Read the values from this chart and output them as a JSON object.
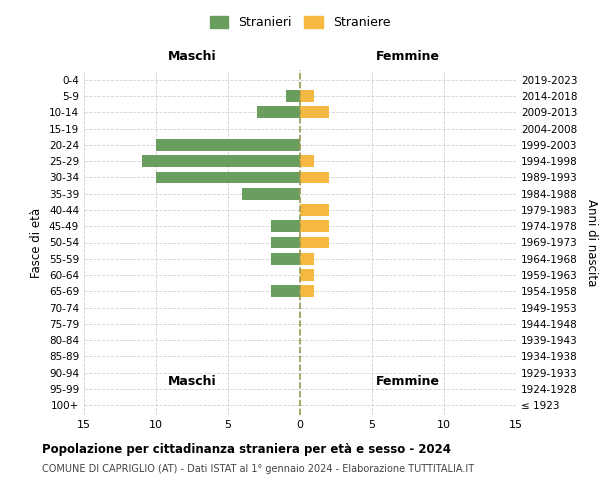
{
  "age_groups": [
    "100+",
    "95-99",
    "90-94",
    "85-89",
    "80-84",
    "75-79",
    "70-74",
    "65-69",
    "60-64",
    "55-59",
    "50-54",
    "45-49",
    "40-44",
    "35-39",
    "30-34",
    "25-29",
    "20-24",
    "15-19",
    "10-14",
    "5-9",
    "0-4"
  ],
  "birth_years": [
    "≤ 1923",
    "1924-1928",
    "1929-1933",
    "1934-1938",
    "1939-1943",
    "1944-1948",
    "1949-1953",
    "1954-1958",
    "1959-1963",
    "1964-1968",
    "1969-1973",
    "1974-1978",
    "1979-1983",
    "1984-1988",
    "1989-1993",
    "1994-1998",
    "1999-2003",
    "2004-2008",
    "2009-2013",
    "2014-2018",
    "2019-2023"
  ],
  "males": [
    0,
    0,
    0,
    0,
    0,
    0,
    0,
    2,
    0,
    2,
    2,
    2,
    0,
    4,
    10,
    11,
    10,
    0,
    3,
    1,
    0
  ],
  "females": [
    0,
    0,
    0,
    0,
    0,
    0,
    0,
    1,
    1,
    1,
    2,
    2,
    2,
    0,
    2,
    1,
    0,
    0,
    2,
    1,
    0
  ],
  "male_color": "#6a9e5f",
  "female_color": "#f5b942",
  "male_label": "Stranieri",
  "female_label": "Straniere",
  "xlim": 15,
  "title": "Popolazione per cittadinanza straniera per età e sesso - 2024",
  "subtitle": "COMUNE DI CAPRIGLIO (AT) - Dati ISTAT al 1° gennaio 2024 - Elaborazione TUTTITALIA.IT",
  "left_header": "Maschi",
  "right_header": "Femmine",
  "left_axis_label": "Fasce di età",
  "right_axis_label": "Anni di nascita",
  "bg_color": "#ffffff",
  "grid_color": "#cccccc",
  "dashed_line_color": "#9a9a50"
}
